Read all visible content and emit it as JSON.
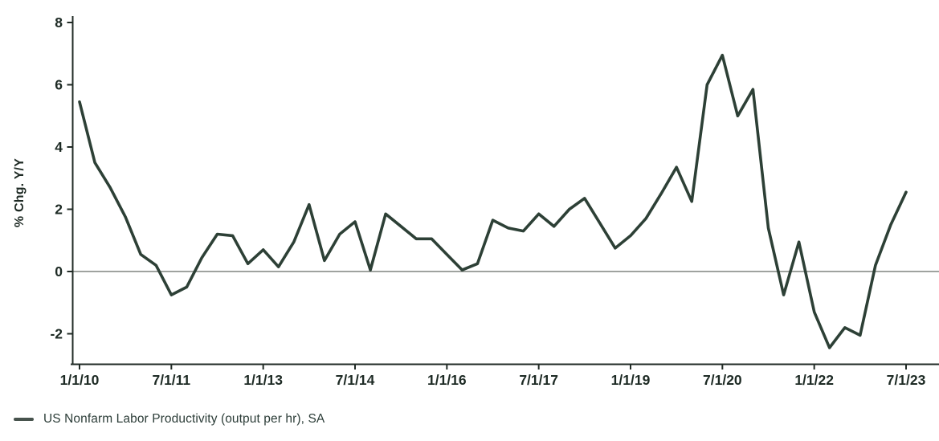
{
  "chart_data": {
    "type": "line",
    "title": "",
    "xlabel": "",
    "ylabel": "% Chg. Y/Y",
    "ylim": [
      -3,
      8
    ],
    "y_ticks": [
      8,
      6,
      4,
      2,
      0,
      -2
    ],
    "grid": false,
    "zero_line": true,
    "legend_position": "bottom-left",
    "x_range": [
      "1/1/10",
      "7/1/23"
    ],
    "x_ticks": [
      {
        "label": "1/1/10",
        "index": 0
      },
      {
        "label": "7/1/11",
        "index": 6
      },
      {
        "label": "1/1/13",
        "index": 12
      },
      {
        "label": "7/1/14",
        "index": 18
      },
      {
        "label": "1/1/16",
        "index": 24
      },
      {
        "label": "7/1/17",
        "index": 30
      },
      {
        "label": "1/1/19",
        "index": 36
      },
      {
        "label": "7/1/20",
        "index": 42
      },
      {
        "label": "1/1/22",
        "index": 48
      },
      {
        "label": "7/1/23",
        "index": 54
      }
    ],
    "series": [
      {
        "name": "US Nonfarm Labor Productivity (output per hr), SA",
        "color": "#2d4036",
        "frequency": "quarterly",
        "values": [
          5.45,
          3.5,
          2.7,
          1.75,
          0.55,
          0.2,
          -0.75,
          -0.5,
          0.45,
          1.2,
          1.15,
          0.25,
          0.7,
          0.15,
          0.95,
          2.15,
          0.35,
          1.2,
          1.6,
          0.05,
          1.85,
          1.45,
          1.05,
          1.05,
          0.55,
          0.05,
          0.25,
          1.65,
          1.4,
          1.3,
          1.85,
          1.45,
          2.0,
          2.35,
          1.55,
          0.75,
          1.15,
          1.7,
          2.5,
          3.35,
          2.25,
          6.0,
          6.95,
          5.0,
          5.85,
          1.4,
          -0.75,
          0.95,
          -1.3,
          -2.45,
          -1.8,
          -2.05,
          0.2,
          1.5,
          2.55
        ]
      }
    ]
  },
  "legend": {
    "items": [
      {
        "label": "US Nonfarm Labor Productivity (output per hr), SA"
      }
    ]
  },
  "colors": {
    "background": "#ffffff",
    "line": "#2d4036",
    "axis": "#212b26",
    "tick_text": "#1d2a24",
    "zero_line": "#666c66",
    "legend_dash": "#47534d",
    "legend_text": "#2c3d38"
  }
}
